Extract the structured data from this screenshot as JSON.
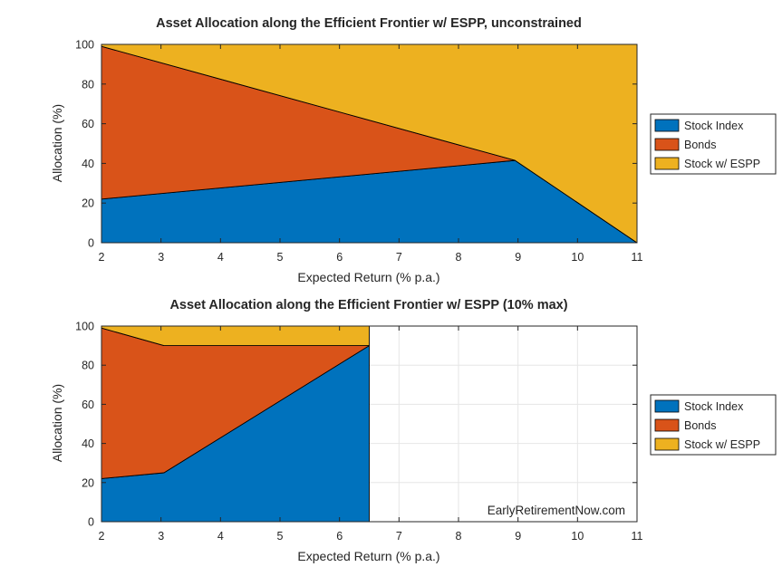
{
  "watermark": "EarlyRetirementNow.com",
  "colors": {
    "stock_index": "#0072BD",
    "bonds": "#D95319",
    "stock_espp": "#EDB120",
    "grid": "#e6e6e6",
    "axis": "#262626"
  },
  "chart_data": [
    {
      "type": "area",
      "stacked": true,
      "title": "Asset Allocation along the Efficient Frontier w/ ESPP, unconstrained",
      "xlabel": "Expected Return (% p.a.)",
      "ylabel": "Allocation (%)",
      "xlim": [
        2,
        11
      ],
      "ylim": [
        0,
        100
      ],
      "xticks": [
        "2",
        "3",
        "4",
        "5",
        "6",
        "7",
        "8",
        "9",
        "10",
        "11"
      ],
      "yticks": [
        "0",
        "20",
        "40",
        "60",
        "80",
        "100"
      ],
      "grid": false,
      "legend_position": "outside-right",
      "series": [
        {
          "name": "Stock Index",
          "x": [
            2,
            8.95,
            11
          ],
          "y": [
            22,
            41.5,
            0
          ]
        },
        {
          "name": "Bonds",
          "x": [
            2,
            8.95,
            11
          ],
          "y": [
            77,
            0,
            0
          ]
        },
        {
          "name": "Stock w/ ESPP",
          "x": [
            2,
            8.95,
            11
          ],
          "y": [
            1,
            58.5,
            100
          ]
        }
      ]
    },
    {
      "type": "area",
      "stacked": true,
      "title": "Asset Allocation along the Efficient Frontier w/ ESPP (10% max)",
      "xlabel": "Expected Return (% p.a.)",
      "ylabel": "Allocation (%)",
      "xlim": [
        2,
        11
      ],
      "ylim": [
        0,
        100
      ],
      "xticks": [
        "2",
        "3",
        "4",
        "5",
        "6",
        "7",
        "8",
        "9",
        "10",
        "11"
      ],
      "yticks": [
        "0",
        "20",
        "40",
        "60",
        "80",
        "100"
      ],
      "grid": true,
      "legend_position": "outside-right",
      "series": [
        {
          "name": "Stock Index",
          "x": [
            2,
            3.05,
            6.5
          ],
          "y": [
            22,
            25,
            90
          ]
        },
        {
          "name": "Bonds",
          "x": [
            2,
            3.05,
            6.5
          ],
          "y": [
            77,
            65,
            0
          ]
        },
        {
          "name": "Stock w/ ESPP",
          "x": [
            2,
            3.05,
            6.5
          ],
          "y": [
            1,
            10,
            10
          ]
        }
      ]
    }
  ]
}
